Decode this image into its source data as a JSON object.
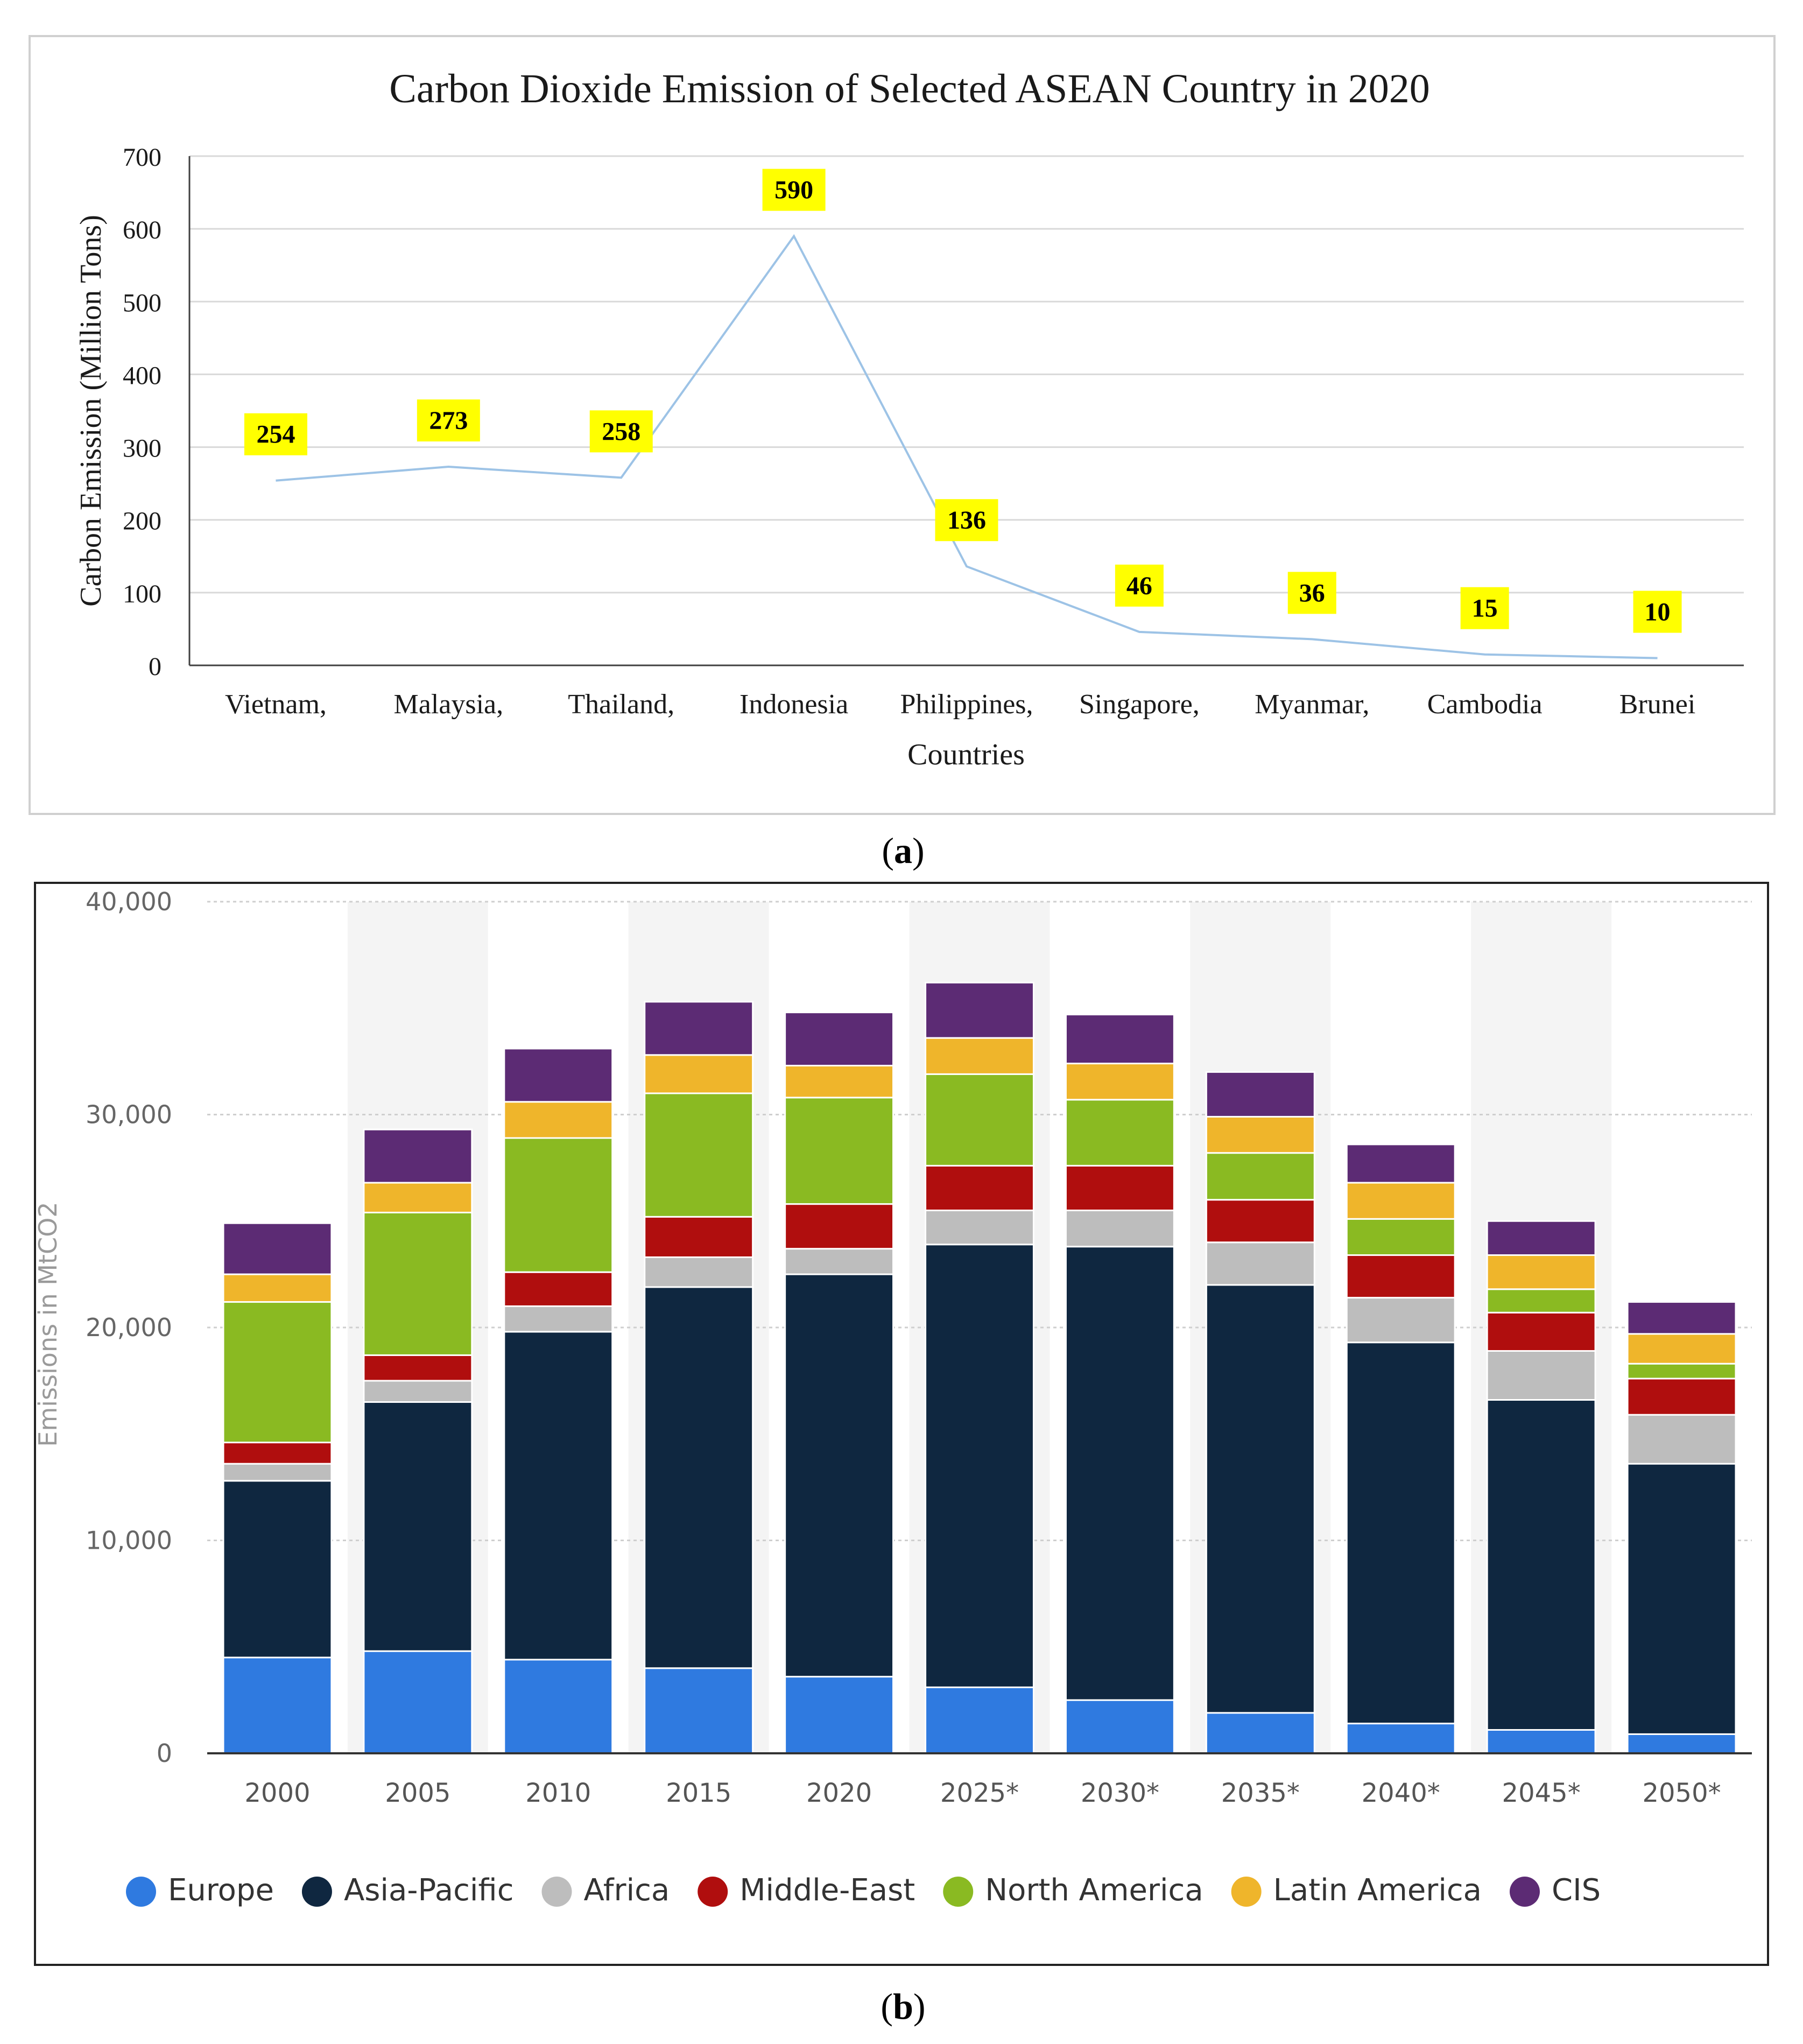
{
  "chart_data": [
    {
      "type": "line",
      "panel_label": "a",
      "title": "Carbon Dioxide Emission of Selected ASEAN Country in 2020",
      "xlabel": "Countries",
      "ylabel": "Carbon Emission (Million Tons)",
      "ylim": [
        0,
        700
      ],
      "yticks": [
        0,
        100,
        200,
        300,
        400,
        500,
        600,
        700
      ],
      "grid": true,
      "categories": [
        "Vietnam,",
        "Malaysia,",
        "Thailand,",
        "Indonesia",
        "Philippines,",
        "Singapore,",
        "Myanmar,",
        "Cambodia",
        "Brunei"
      ],
      "values": [
        254,
        273,
        258,
        590,
        136,
        46,
        36,
        15,
        10
      ],
      "line_color": "#9dc3e6",
      "label_bg": "#ffff00"
    },
    {
      "type": "bar",
      "stacked": true,
      "panel_label": "b",
      "ylabel": "Emissions in MtCO2",
      "ylim": [
        0,
        40000
      ],
      "yticks": [
        "0",
        "10,000",
        "20,000",
        "30,000",
        "40,000"
      ],
      "ytick_values": [
        0,
        10000,
        20000,
        30000,
        40000
      ],
      "grid": true,
      "legend_position": "bottom",
      "categories": [
        "2000",
        "2005",
        "2010",
        "2015",
        "2020",
        "2025*",
        "2030*",
        "2035*",
        "2040*",
        "2045*",
        "2050*"
      ],
      "series": [
        {
          "name": "Europe",
          "color": "#2f7ae0",
          "values": [
            4500,
            4800,
            4400,
            4000,
            3600,
            3100,
            2500,
            1900,
            1400,
            1100,
            900
          ]
        },
        {
          "name": "Asia-Pacific",
          "color": "#0f2740",
          "values": [
            8300,
            11700,
            15400,
            17900,
            18900,
            20800,
            21300,
            20100,
            17900,
            15500,
            12700
          ]
        },
        {
          "name": "Africa",
          "color": "#bdbdbd",
          "values": [
            800,
            1000,
            1200,
            1400,
            1200,
            1600,
            1700,
            2000,
            2100,
            2300,
            2300
          ]
        },
        {
          "name": "Middle-East",
          "color": "#b00e0e",
          "values": [
            1000,
            1200,
            1600,
            1900,
            2100,
            2100,
            2100,
            2000,
            2000,
            1800,
            1700
          ]
        },
        {
          "name": "North America",
          "color": "#8aba22",
          "values": [
            6600,
            6700,
            6300,
            5800,
            5000,
            4300,
            3100,
            2200,
            1700,
            1100,
            700
          ]
        },
        {
          "name": "Latin America",
          "color": "#efb52b",
          "values": [
            1300,
            1400,
            1700,
            1800,
            1500,
            1700,
            1700,
            1700,
            1700,
            1600,
            1400
          ]
        },
        {
          "name": "CIS",
          "color": "#5c2b74",
          "values": [
            2400,
            2500,
            2500,
            2500,
            2500,
            2600,
            2300,
            2100,
            1800,
            1600,
            1500
          ]
        }
      ]
    }
  ],
  "captions": {
    "a": "a",
    "b": "b"
  }
}
